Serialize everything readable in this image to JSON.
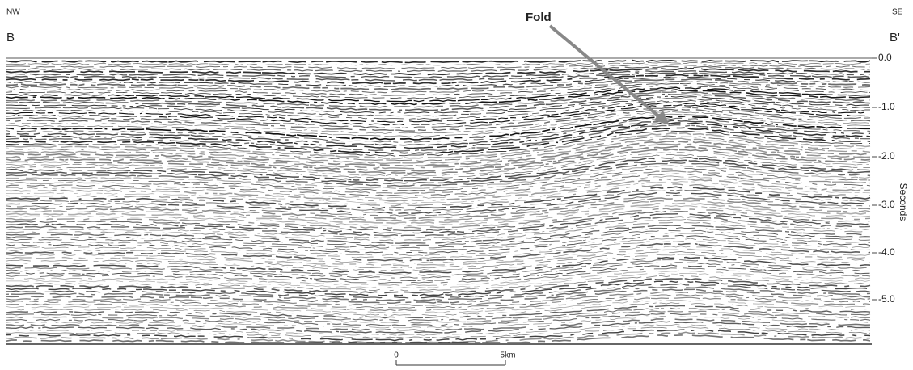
{
  "header": {
    "left_direction": "NW",
    "right_direction": "SE",
    "left_point": "B",
    "right_point": "B'"
  },
  "annotation": {
    "label": "Fold"
  },
  "axis": {
    "label": "Seconds",
    "ticks": [
      "0.0",
      "-1.0",
      "-2.0",
      "-3.0",
      "-4.0",
      "-5.0"
    ]
  },
  "scale_bar": {
    "start": "0",
    "end": "5km"
  }
}
